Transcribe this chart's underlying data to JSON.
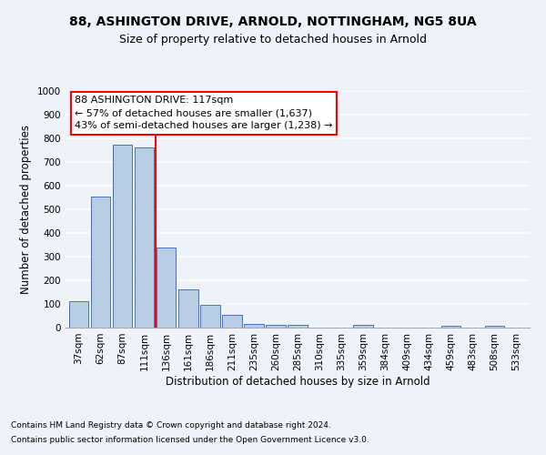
{
  "title1": "88, ASHINGTON DRIVE, ARNOLD, NOTTINGHAM, NG5 8UA",
  "title2": "Size of property relative to detached houses in Arnold",
  "xlabel": "Distribution of detached houses by size in Arnold",
  "ylabel": "Number of detached properties",
  "categories": [
    "37sqm",
    "62sqm",
    "87sqm",
    "111sqm",
    "136sqm",
    "161sqm",
    "186sqm",
    "211sqm",
    "235sqm",
    "260sqm",
    "285sqm",
    "310sqm",
    "335sqm",
    "359sqm",
    "384sqm",
    "409sqm",
    "434sqm",
    "459sqm",
    "483sqm",
    "508sqm",
    "533sqm"
  ],
  "values": [
    110,
    555,
    775,
    760,
    340,
    163,
    97,
    52,
    17,
    13,
    12,
    0,
    0,
    10,
    0,
    0,
    0,
    8,
    0,
    8,
    0
  ],
  "bar_color": "#b8cce4",
  "bar_edge_color": "#4472c4",
  "vline_x": 3.5,
  "vline_color": "red",
  "annotation_line1": "88 ASHINGTON DRIVE: 117sqm",
  "annotation_line2": "← 57% of detached houses are smaller (1,637)",
  "annotation_line3": "43% of semi-detached houses are larger (1,238) →",
  "annotation_box_color": "white",
  "annotation_box_edge_color": "red",
  "ylim": [
    0,
    1000
  ],
  "yticks": [
    0,
    100,
    200,
    300,
    400,
    500,
    600,
    700,
    800,
    900,
    1000
  ],
  "footer1": "Contains HM Land Registry data © Crown copyright and database right 2024.",
  "footer2": "Contains public sector information licensed under the Open Government Licence v3.0.",
  "background_color": "#eef2f9",
  "plot_bg_color": "#eef2f9",
  "grid_color": "#ffffff",
  "title_fontsize": 10,
  "subtitle_fontsize": 9,
  "tick_fontsize": 7.5,
  "ylabel_fontsize": 8.5,
  "xlabel_fontsize": 8.5,
  "footer_fontsize": 6.5,
  "annotation_fontsize": 8
}
